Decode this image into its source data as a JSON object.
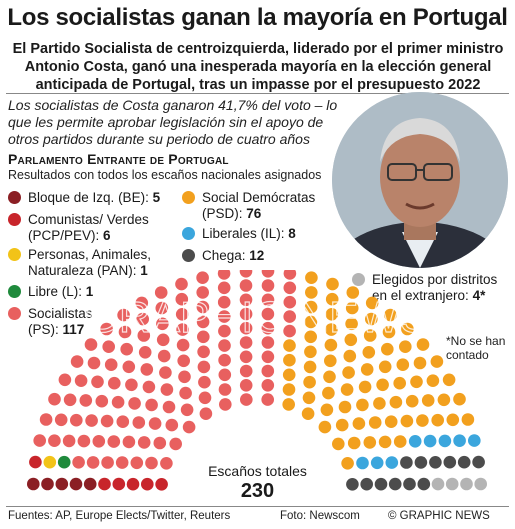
{
  "header": {
    "title": "Los socialistas ganan la mayoría en Portugal",
    "subtitle": "El Partido Socialista de centroizquierda, liderado por el primer ministro Antonio Costa, ganó una inesperada mayoría en la elección general anticipada de Portugal, tras un impasse por el presupuesto 2022"
  },
  "intro": "Los socialistas de Costa ganaron 41,7% del voto – lo que les permite aprobar legislación sin el apoyo de otros partidos durante su periodo de cuatro años",
  "section": {
    "title": "Parlamento Entrante de Portugal",
    "subtitle": "Resultados con todos los escaños nacionales asignados"
  },
  "legend": [
    {
      "label": "Bloque de Izq. (BE): ",
      "value": "5",
      "color": "#8b1f24"
    },
    {
      "label": "Comunistas/ Verdes (PCP/PEV): ",
      "value": "6",
      "color": "#c8252b"
    },
    {
      "label": "Personas, Animales, Naturaleza (PAN): ",
      "value": "1",
      "color": "#f2c318"
    },
    {
      "label": "Libre (L): ",
      "value": "1",
      "color": "#1f8a3c"
    },
    {
      "label": "Socialistas (PS): ",
      "value": "117",
      "color": "#e8605f"
    },
    {
      "label": "Social Demócratas (PSD): ",
      "value": "76",
      "color": "#f2a01e"
    },
    {
      "label": "Liberales (IL): ",
      "value": "8",
      "color": "#3ba6dd"
    },
    {
      "label": "Chega: ",
      "value": "12",
      "color": "#4c4c4c"
    },
    {
      "label": "Elegidos por distritos en el extranjero: ",
      "value": "4*",
      "color": "#b4b4b4"
    }
  ],
  "note": "*No se han contado",
  "total": {
    "label": "Escaños totales",
    "value": "230"
  },
  "footer": {
    "sources": "Fuentes: AP, Europe Elects/Twitter, Reuters",
    "photo": "Foto: Newscom",
    "copyright": "© GRAPHIC NEWS"
  },
  "watermark": "GRAPHIC NEWS",
  "chart_data": {
    "type": "hemicycle",
    "title": "Parlamento Entrante de Portugal",
    "total_seats": 230,
    "series": [
      {
        "name": "Bloque de Izq. (BE)",
        "values": [
          5
        ],
        "color": "#8b1f24"
      },
      {
        "name": "Comunistas/ Verdes (PCP/PEV)",
        "values": [
          6
        ],
        "color": "#c8252b"
      },
      {
        "name": "Personas, Animales, Naturaleza (PAN)",
        "values": [
          1
        ],
        "color": "#f2c318"
      },
      {
        "name": "Libre (L)",
        "values": [
          1
        ],
        "color": "#1f8a3c"
      },
      {
        "name": "Socialistas (PS)",
        "values": [
          117
        ],
        "color": "#e8605f"
      },
      {
        "name": "Social Demócratas (PSD)",
        "values": [
          76
        ],
        "color": "#f2a01e"
      },
      {
        "name": "Liberales (IL)",
        "values": [
          8
        ],
        "color": "#3ba6dd"
      },
      {
        "name": "Chega",
        "values": [
          12
        ],
        "color": "#4c4c4c"
      },
      {
        "name": "Elegidos por distritos en el extranjero",
        "values": [
          4
        ],
        "color": "#b4b4b4"
      }
    ]
  }
}
